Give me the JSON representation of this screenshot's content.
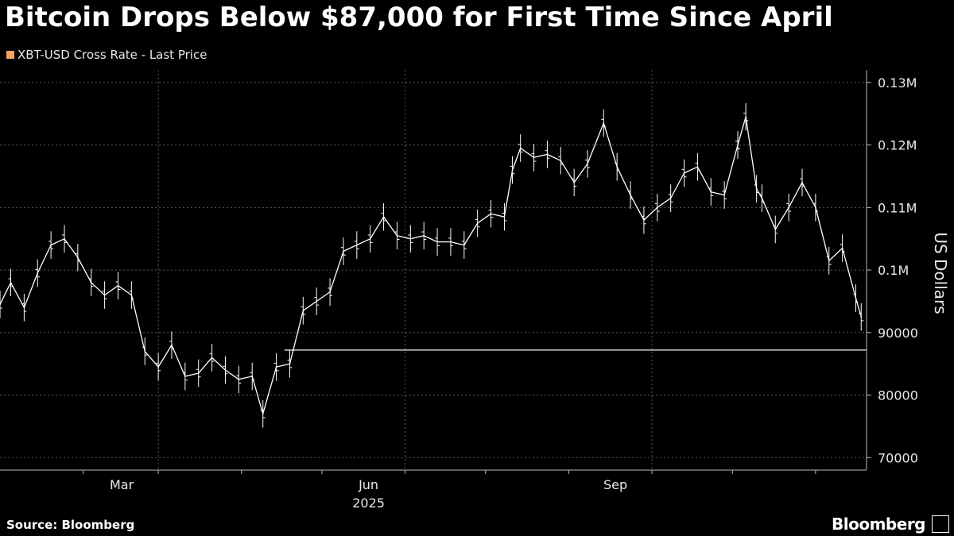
{
  "title": "Bitcoin Drops Below $87,000 for First Time Since April",
  "legend": {
    "label": "XBT-USD Cross Rate - Last Price",
    "color": "#f4a460"
  },
  "source": "Source: Bloomberg",
  "brand": "Bloomberg",
  "brand_icon": "bloomberg-logo-icon",
  "chart_data": {
    "type": "line",
    "title": "Bitcoin Drops Below $87,000 for First Time Since April",
    "ylabel": "US Dollars",
    "xlabel": "",
    "ylim": [
      68000,
      131000
    ],
    "yticks": [
      {
        "value": 130000,
        "label": "0.13M"
      },
      {
        "value": 120000,
        "label": "0.12M"
      },
      {
        "value": 110000,
        "label": "0.11M"
      },
      {
        "value": 100000,
        "label": "0.1M"
      },
      {
        "value": 90000,
        "label": "90000"
      },
      {
        "value": 80000,
        "label": "80000"
      },
      {
        "value": 70000,
        "label": "70000"
      }
    ],
    "xlim": [
      "2025-01-01",
      "2025-11-20"
    ],
    "xticks": [
      {
        "date": "2025-03-01",
        "label": "Mar"
      },
      {
        "date": "2025-06-01",
        "label": "Jun"
      },
      {
        "date": "2025-09-01",
        "label": "Sep"
      }
    ],
    "year_label": "2025",
    "reference_line": {
      "value": 87200,
      "from": "2025-04-17",
      "to": "2025-11-20"
    },
    "grid": true,
    "series": [
      {
        "name": "XBT-USD Cross Rate - Last Price",
        "color": "#ffffff",
        "x": [
          "2025-01-01",
          "2025-01-05",
          "2025-01-10",
          "2025-01-15",
          "2025-01-20",
          "2025-01-25",
          "2025-01-30",
          "2025-02-04",
          "2025-02-09",
          "2025-02-14",
          "2025-02-19",
          "2025-02-24",
          "2025-03-01",
          "2025-03-06",
          "2025-03-11",
          "2025-03-16",
          "2025-03-21",
          "2025-03-26",
          "2025-03-31",
          "2025-04-05",
          "2025-04-09",
          "2025-04-14",
          "2025-04-19",
          "2025-04-24",
          "2025-04-29",
          "2025-05-04",
          "2025-05-09",
          "2025-05-14",
          "2025-05-19",
          "2025-05-24",
          "2025-05-29",
          "2025-06-03",
          "2025-06-08",
          "2025-06-13",
          "2025-06-18",
          "2025-06-23",
          "2025-06-28",
          "2025-07-03",
          "2025-07-08",
          "2025-07-11",
          "2025-07-14",
          "2025-07-19",
          "2025-07-24",
          "2025-07-29",
          "2025-08-03",
          "2025-08-08",
          "2025-08-14",
          "2025-08-19",
          "2025-08-24",
          "2025-08-29",
          "2025-09-03",
          "2025-09-08",
          "2025-09-13",
          "2025-09-18",
          "2025-09-23",
          "2025-09-28",
          "2025-10-03",
          "2025-10-06",
          "2025-10-10",
          "2025-10-12",
          "2025-10-17",
          "2025-10-22",
          "2025-10-27",
          "2025-11-01",
          "2025-11-06",
          "2025-11-11",
          "2025-11-16",
          "2025-11-18"
        ],
        "values": [
          94500,
          98000,
          94000,
          99500,
          104000,
          105000,
          102000,
          98000,
          96000,
          97500,
          96000,
          87000,
          84500,
          88000,
          83000,
          83500,
          86000,
          84000,
          82500,
          83000,
          77000,
          84500,
          85000,
          93500,
          95000,
          96500,
          103000,
          104000,
          105000,
          108500,
          105500,
          105000,
          105500,
          104500,
          104500,
          104000,
          107500,
          109000,
          108500,
          116000,
          119500,
          118000,
          118500,
          117500,
          114000,
          117000,
          123500,
          116500,
          112000,
          108000,
          110000,
          111500,
          115500,
          116500,
          112500,
          112000,
          120000,
          124500,
          113000,
          111500,
          106500,
          110000,
          114000,
          110000,
          101500,
          103500,
          95500,
          92500
        ]
      }
    ]
  }
}
